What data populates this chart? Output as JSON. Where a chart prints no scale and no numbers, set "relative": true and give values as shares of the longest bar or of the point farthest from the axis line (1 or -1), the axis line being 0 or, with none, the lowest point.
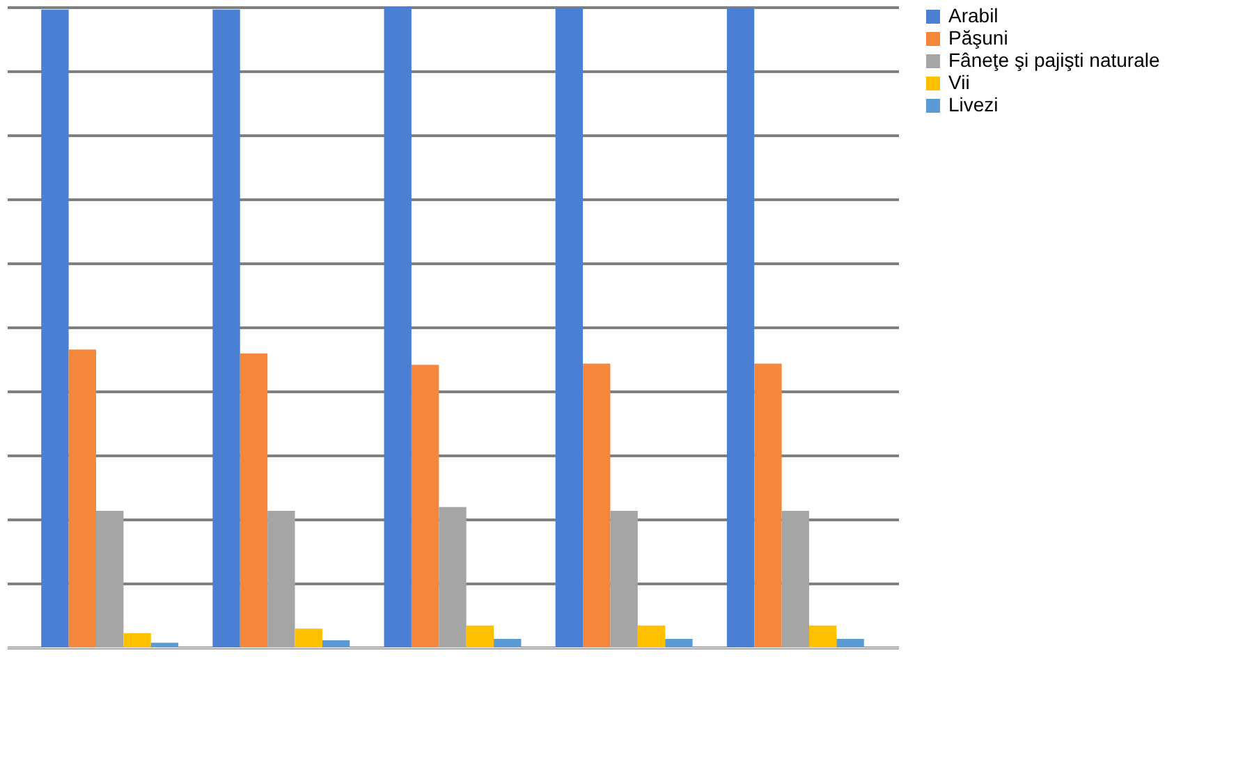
{
  "chart_data": {
    "type": "bar",
    "relative": true,
    "categories": [
      null,
      null,
      null,
      null,
      null
    ],
    "series": [
      {
        "name": "Arabil",
        "color": "#4a7fd4",
        "values": [
          0.996,
          0.996,
          1,
          0.998,
          0.998
        ]
      },
      {
        "name": "Păşuni",
        "color": "#f4873c",
        "values": [
          0.465,
          0.459,
          0.441,
          0.443,
          0.443
        ]
      },
      {
        "name": "Fâneţe şi pajişti naturale",
        "color": "#a5a5a5",
        "values": [
          0.213,
          0.213,
          0.219,
          0.213,
          0.213
        ]
      },
      {
        "name": "Vii",
        "color": "#ffc000",
        "values": [
          0.022,
          0.029,
          0.034,
          0.034,
          0.034
        ]
      },
      {
        "name": "Livezi",
        "color": "#5b9bd5",
        "values": [
          0.007,
          0.011,
          0.013,
          0.013,
          0.013
        ]
      }
    ],
    "grid": "y",
    "legend": "right"
  }
}
